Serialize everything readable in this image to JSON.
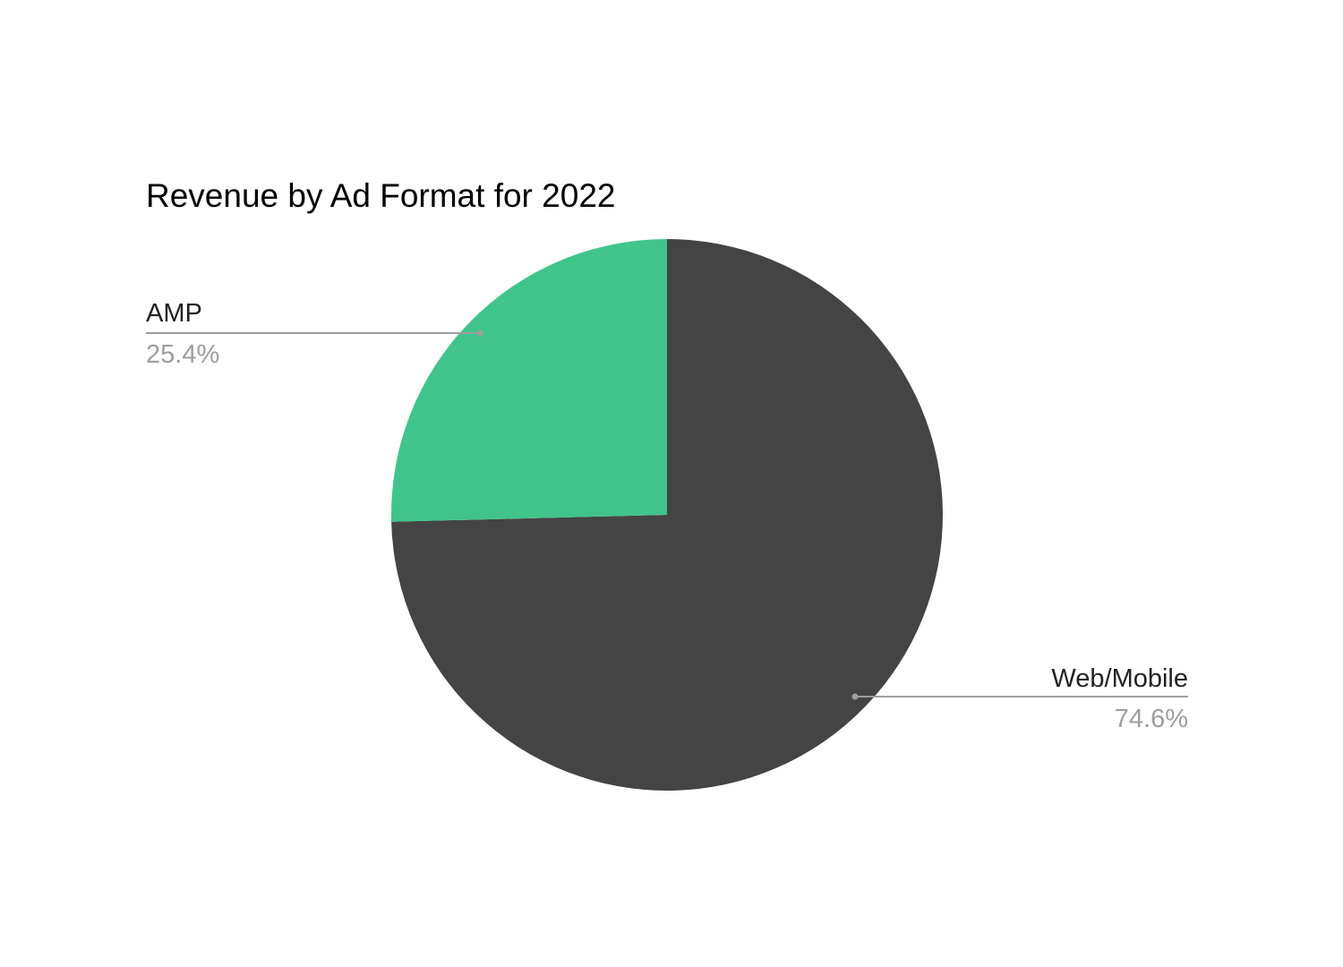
{
  "chart_data": {
    "type": "pie",
    "title": "Revenue by Ad Format for 2022",
    "slices": [
      {
        "label": "AMP",
        "percent_text": "25.4%",
        "value": 25.4,
        "color": "#41c48b"
      },
      {
        "label": "Web/Mobile",
        "percent_text": "74.6%",
        "value": 74.6,
        "color": "#444444"
      }
    ],
    "legend": "none"
  }
}
